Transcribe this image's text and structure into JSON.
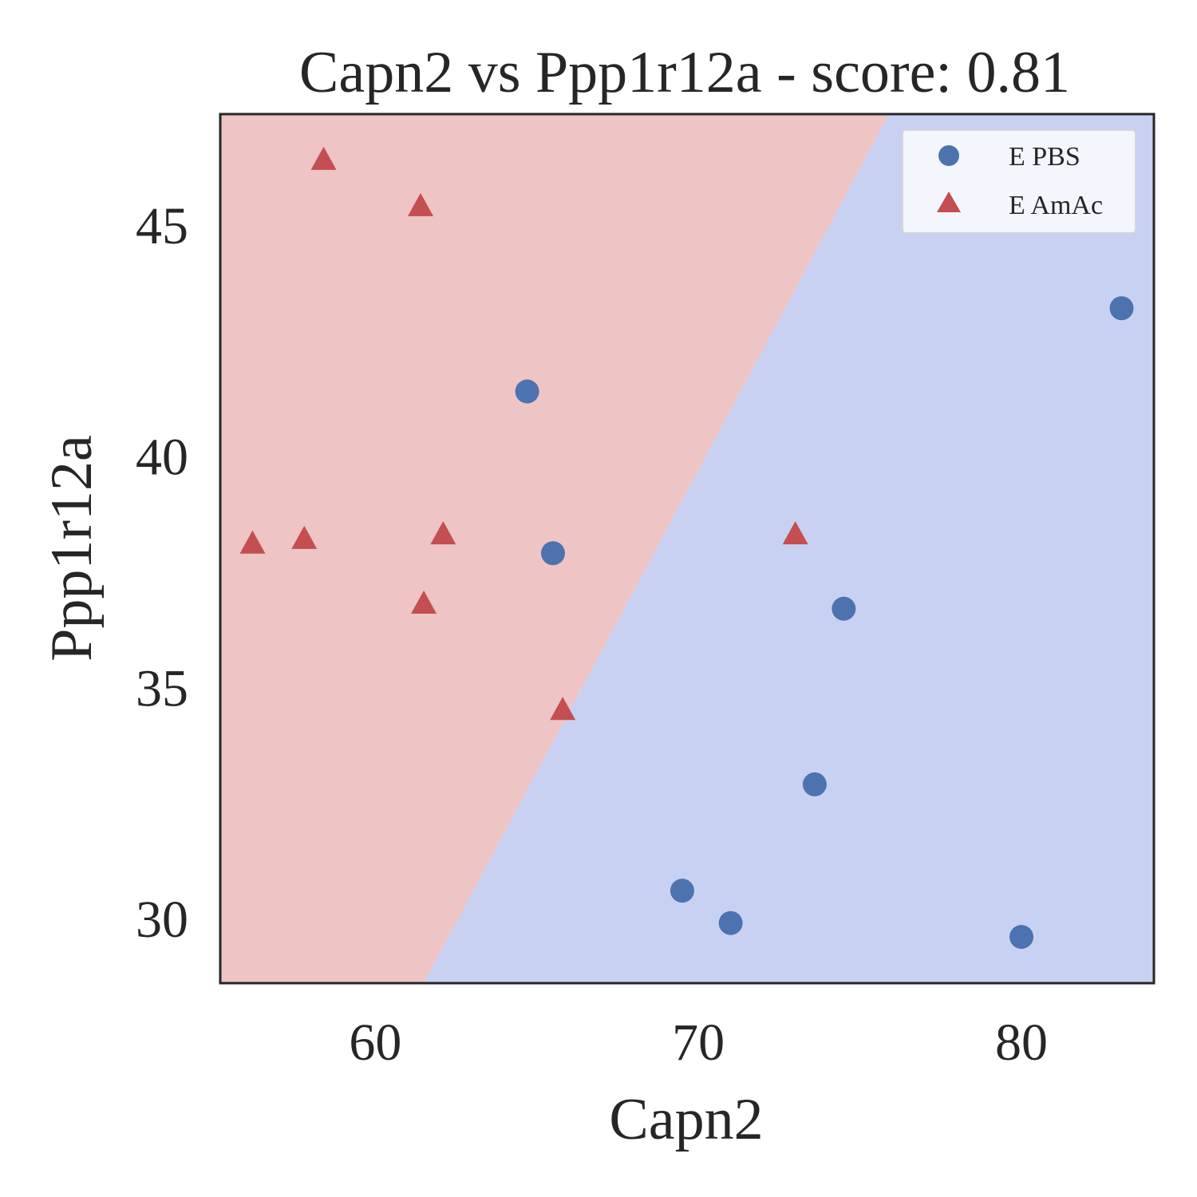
{
  "chart_data": {
    "type": "scatter",
    "title": "Capn2 vs Ppp1r12a - score: 0.81",
    "xlabel": "Capn2",
    "ylabel": "Ppp1r12a",
    "xlim": [
      55.2,
      84.1
    ],
    "ylim": [
      28.6,
      47.4
    ],
    "xticks": [
      60,
      70,
      80
    ],
    "yticks": [
      30,
      35,
      40,
      45
    ],
    "grid": false,
    "legend_position": "top-right",
    "decision_regions": {
      "boundary": [
        [
          61.5,
          28.6
        ],
        [
          75.9,
          47.4
        ]
      ],
      "left_region_class": "E AmAc",
      "right_region_class": "E PBS",
      "left_color": "#eec4c4",
      "right_color": "#c9d1f2"
    },
    "series": [
      {
        "name": "E PBS",
        "marker": "circle",
        "color": "#4c72b0",
        "points": [
          [
            64.7,
            41.4
          ],
          [
            65.5,
            37.9
          ],
          [
            74.5,
            36.7
          ],
          [
            73.6,
            32.9
          ],
          [
            69.5,
            30.6
          ],
          [
            71.0,
            29.9
          ],
          [
            80.0,
            29.6
          ],
          [
            83.1,
            43.2
          ]
        ]
      },
      {
        "name": "E AmAc",
        "marker": "triangle",
        "color": "#c44e52",
        "points": [
          [
            58.4,
            46.4
          ],
          [
            61.4,
            45.4
          ],
          [
            56.2,
            38.1
          ],
          [
            57.8,
            38.2
          ],
          [
            62.1,
            38.3
          ],
          [
            61.5,
            36.8
          ],
          [
            65.8,
            34.5
          ],
          [
            73.0,
            38.3
          ]
        ]
      }
    ]
  }
}
